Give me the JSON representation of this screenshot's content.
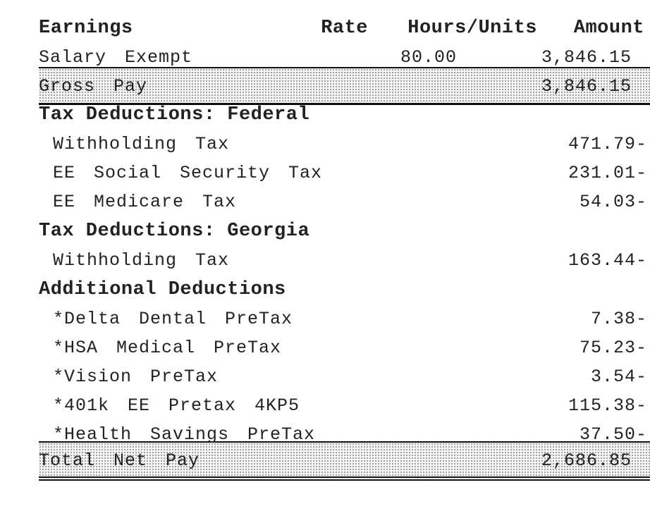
{
  "earnings": {
    "header": {
      "title": "Earnings",
      "rate": "Rate",
      "hours": "Hours/Units",
      "amount": "Amount"
    },
    "rows": [
      {
        "label": "Salary Exempt",
        "hours": "80.00",
        "amount": "3,846.15"
      }
    ],
    "gross": {
      "label": "Gross Pay",
      "amount": "3,846.15"
    }
  },
  "sections": [
    {
      "title": "Tax Deductions: Federal",
      "items": [
        {
          "label": "Withholding Tax",
          "amount": "471.79-"
        },
        {
          "label": "EE Social Security Tax",
          "amount": "231.01-"
        },
        {
          "label": "EE Medicare Tax",
          "amount": "54.03-"
        }
      ]
    },
    {
      "title": "Tax Deductions: Georgia",
      "items": [
        {
          "label": "Withholding Tax",
          "amount": "163.44-"
        }
      ]
    },
    {
      "title": "Additional Deductions",
      "items": [
        {
          "label": "*Delta Dental PreTax",
          "amount": "7.38-"
        },
        {
          "label": "*HSA Medical PreTax",
          "amount": "75.23-"
        },
        {
          "label": "*Vision PreTax",
          "amount": "3.54-"
        },
        {
          "label": "*401k EE Pretax 4KP5",
          "amount": "115.38-"
        },
        {
          "label": "*Health Savings PreTax",
          "amount": "37.50-"
        }
      ]
    }
  ],
  "net": {
    "label": "Total Net Pay",
    "amount": "2,686.85"
  }
}
